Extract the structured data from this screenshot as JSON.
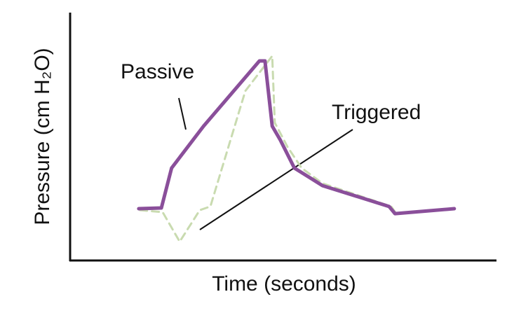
{
  "chart_data": {
    "type": "line",
    "xlabel": "Time (seconds)",
    "ylabel": "Pressure (cm H₂O)",
    "xlim": [
      0,
      100
    ],
    "ylim": [
      0,
      100
    ],
    "grid": false,
    "annotations": [
      "Passive",
      "Triggered"
    ],
    "series": [
      {
        "name": "Passive",
        "color": "#8a4f9a",
        "dashed": false,
        "x": [
          16.1,
          21.4,
          23.8,
          31.3,
          44.4,
          45.7,
          47.4,
          49.3,
          52.6,
          59.2,
          74.8,
          76.2,
          90.1
        ],
        "values": [
          20.9,
          21.2,
          37.3,
          54.2,
          80.5,
          80.5,
          54.2,
          48.6,
          37.3,
          30.2,
          21.8,
          18.9,
          20.9
        ]
      },
      {
        "name": "Triggered",
        "color": "#c9dbb0",
        "dashed": true,
        "x": [
          16.4,
          21.7,
          25.7,
          30.4,
          32.9,
          41.1,
          47.4,
          48.0,
          51.0,
          54.3,
          59.2,
          75.3,
          76.5
        ],
        "values": [
          20.3,
          19.5,
          7.6,
          20.3,
          21.8,
          68.4,
          82.5,
          55.6,
          45.8,
          37.3,
          31.1,
          21.8,
          18.9
        ]
      }
    ]
  }
}
